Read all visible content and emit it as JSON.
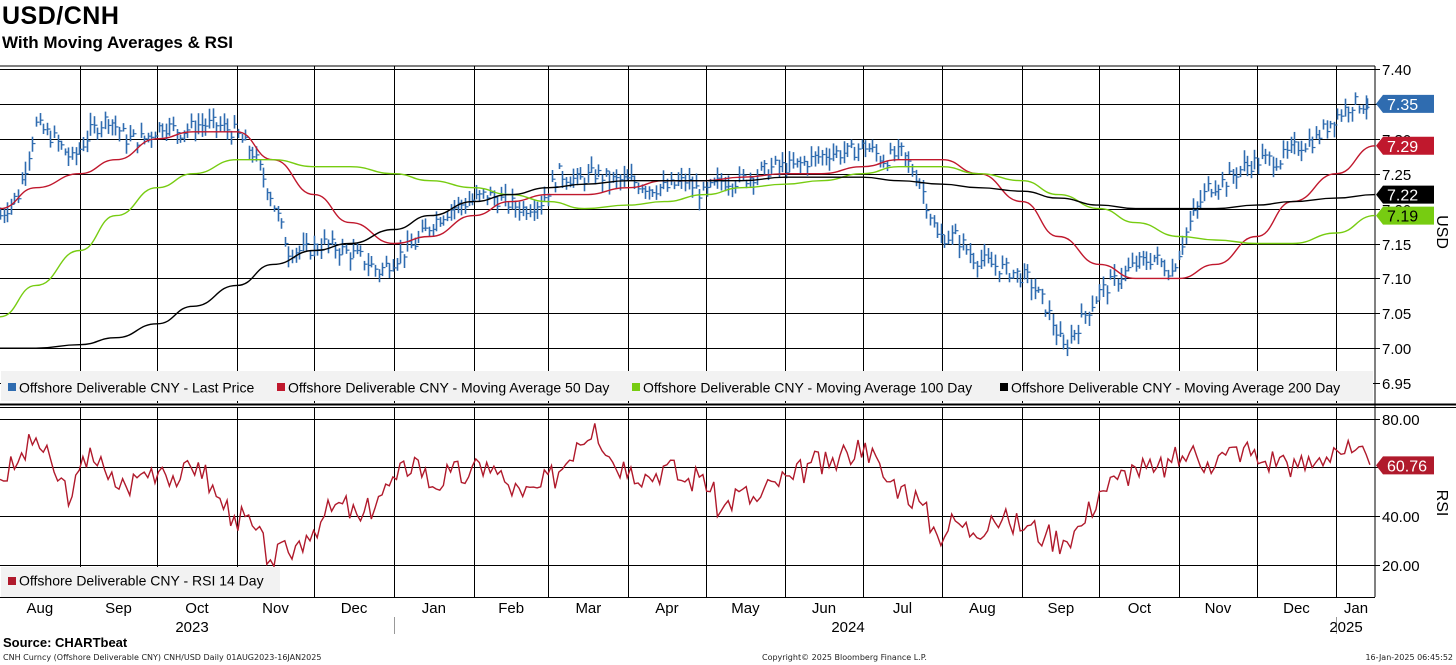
{
  "header": {
    "title": "USD/CNH",
    "subtitle": "With Moving Averages & RSI"
  },
  "footer": {
    "source": "Source: CHARTbeat",
    "security": "CNH Curncy (Offshore Deliverable CNY) CNH/USD  Daily 01AUG2023-16JAN2025",
    "copyright": "Copyright© 2025 Bloomberg Finance L.P.",
    "timestamp": "16-Jan-2025 06:45:52"
  },
  "colors": {
    "price": "#2f6cb0",
    "ma50": "#c0182d",
    "ma100": "#77cc11",
    "ma200": "#000000",
    "rsi": "#b01a2c",
    "grid": "#000000"
  },
  "chart_data": [
    {
      "type": "line",
      "title": "USD/CNH",
      "ylabel": "USD",
      "ylim": [
        6.95,
        7.4
      ],
      "yticks": [
        "6.95",
        "7.00",
        "7.05",
        "7.10",
        "7.15",
        "7.20",
        "7.25",
        "7.30",
        "7.35",
        "7.40"
      ],
      "x_range": [
        "2023-08-01",
        "2025-01-16"
      ],
      "month_labels": [
        "Aug",
        "Sep",
        "Oct",
        "Nov",
        "Dec",
        "Jan",
        "Feb",
        "Mar",
        "Apr",
        "May",
        "Jun",
        "Jul",
        "Aug",
        "Sep",
        "Oct",
        "Nov",
        "Dec",
        "Jan"
      ],
      "year_labels": [
        "2023",
        "2024",
        "2025"
      ],
      "last_value_labels": [
        {
          "series": "Offshore Deliverable CNY - Last Price",
          "value": "7.35"
        },
        {
          "series": "Offshore Deliverable CNY - Moving Average 50 Day",
          "value": "7.29"
        },
        {
          "series": "Offshore Deliverable CNY - Moving Average 200 Day",
          "value": "7.22"
        },
        {
          "series": "Offshore Deliverable CNY - Moving Average 100 Day",
          "value": "7.19"
        }
      ],
      "legend": [
        "Offshore Deliverable CNY - Last Price",
        "Offshore Deliverable CNY - Moving Average 50 Day",
        "Offshore Deliverable CNY - Moving Average 100 Day",
        "Offshore Deliverable CNY - Moving Average 200 Day"
      ],
      "legend_position": "bottom",
      "grid": true,
      "series": [
        {
          "name": "Offshore Deliverable CNY - Last Price",
          "kind": "ohlc-bars",
          "x": [
            "2023-08-01",
            "2023-08-08",
            "2023-08-15",
            "2023-08-22",
            "2023-08-29",
            "2023-09-05",
            "2023-09-12",
            "2023-09-19",
            "2023-09-26",
            "2023-10-03",
            "2023-10-10",
            "2023-10-17",
            "2023-10-24",
            "2023-10-31",
            "2023-11-07",
            "2023-11-14",
            "2023-11-21",
            "2023-11-28",
            "2023-12-05",
            "2023-12-12",
            "2023-12-19",
            "2023-12-26",
            "2024-01-02",
            "2024-01-09",
            "2024-01-16",
            "2024-01-23",
            "2024-01-30",
            "2024-02-06",
            "2024-02-13",
            "2024-02-20",
            "2024-02-27",
            "2024-03-05",
            "2024-03-12",
            "2024-03-19",
            "2024-03-26",
            "2024-04-02",
            "2024-04-09",
            "2024-04-16",
            "2024-04-23",
            "2024-04-30",
            "2024-05-07",
            "2024-05-14",
            "2024-05-21",
            "2024-05-28",
            "2024-06-04",
            "2024-06-11",
            "2024-06-18",
            "2024-06-25",
            "2024-07-02",
            "2024-07-09",
            "2024-07-16",
            "2024-07-23",
            "2024-07-30",
            "2024-08-06",
            "2024-08-13",
            "2024-08-20",
            "2024-08-27",
            "2024-09-03",
            "2024-09-10",
            "2024-09-17",
            "2024-09-24",
            "2024-10-01",
            "2024-10-08",
            "2024-10-15",
            "2024-10-22",
            "2024-10-29",
            "2024-11-05",
            "2024-11-12",
            "2024-11-19",
            "2024-11-26",
            "2024-12-03",
            "2024-12-10",
            "2024-12-17",
            "2024-12-24",
            "2024-12-31",
            "2025-01-07",
            "2025-01-14"
          ],
          "values": [
            7.19,
            7.22,
            7.32,
            7.3,
            7.27,
            7.31,
            7.33,
            7.3,
            7.3,
            7.32,
            7.31,
            7.32,
            7.32,
            7.31,
            7.28,
            7.22,
            7.14,
            7.14,
            7.15,
            7.14,
            7.13,
            7.11,
            7.13,
            7.15,
            7.18,
            7.2,
            7.21,
            7.22,
            7.21,
            7.2,
            7.21,
            7.25,
            7.24,
            7.25,
            7.24,
            7.24,
            7.23,
            7.23,
            7.24,
            7.22,
            7.24,
            7.24,
            7.25,
            7.26,
            7.26,
            7.27,
            7.28,
            7.28,
            7.29,
            7.27,
            7.28,
            7.24,
            7.16,
            7.16,
            7.13,
            7.12,
            7.11,
            7.1,
            7.06,
            7.0,
            7.04,
            7.08,
            7.1,
            7.12,
            7.13,
            7.11,
            7.18,
            7.23,
            7.24,
            7.26,
            7.27,
            7.27,
            7.29,
            7.3,
            7.33,
            7.35,
            7.35
          ]
        },
        {
          "name": "Offshore Deliverable CNY - Moving Average 50 Day",
          "x": [
            "2023-08-01",
            "2023-08-15",
            "2023-09-01",
            "2023-09-15",
            "2023-10-01",
            "2023-10-15",
            "2023-11-01",
            "2023-11-15",
            "2023-12-01",
            "2023-12-15",
            "2024-01-01",
            "2024-01-15",
            "2024-02-01",
            "2024-02-15",
            "2024-03-01",
            "2024-03-15",
            "2024-04-01",
            "2024-04-15",
            "2024-05-01",
            "2024-05-15",
            "2024-06-01",
            "2024-06-15",
            "2024-07-01",
            "2024-07-15",
            "2024-08-01",
            "2024-08-15",
            "2024-09-01",
            "2024-09-15",
            "2024-10-01",
            "2024-10-15",
            "2024-11-01",
            "2024-11-15",
            "2024-12-01",
            "2024-12-15",
            "2025-01-01",
            "2025-01-16"
          ],
          "values": [
            7.2,
            7.23,
            7.25,
            7.27,
            7.3,
            7.31,
            7.31,
            7.27,
            7.22,
            7.18,
            7.15,
            7.16,
            7.19,
            7.21,
            7.22,
            7.22,
            7.23,
            7.24,
            7.24,
            7.245,
            7.25,
            7.25,
            7.26,
            7.27,
            7.27,
            7.25,
            7.21,
            7.16,
            7.12,
            7.1,
            7.1,
            7.12,
            7.16,
            7.21,
            7.25,
            7.29
          ]
        },
        {
          "name": "Offshore Deliverable CNY - Moving Average 100 Day",
          "x": [
            "2023-08-01",
            "2023-08-15",
            "2023-09-01",
            "2023-09-15",
            "2023-10-01",
            "2023-10-15",
            "2023-11-01",
            "2023-11-15",
            "2023-12-01",
            "2023-12-15",
            "2024-01-01",
            "2024-01-15",
            "2024-02-01",
            "2024-02-15",
            "2024-03-01",
            "2024-03-15",
            "2024-04-01",
            "2024-04-15",
            "2024-05-01",
            "2024-05-15",
            "2024-06-01",
            "2024-06-15",
            "2024-07-01",
            "2024-07-15",
            "2024-08-01",
            "2024-08-15",
            "2024-09-01",
            "2024-09-15",
            "2024-10-01",
            "2024-10-15",
            "2024-11-01",
            "2024-11-15",
            "2024-12-01",
            "2024-12-15",
            "2025-01-01",
            "2025-01-16"
          ],
          "values": [
            7.045,
            7.09,
            7.14,
            7.19,
            7.23,
            7.25,
            7.27,
            7.27,
            7.26,
            7.26,
            7.25,
            7.24,
            7.23,
            7.22,
            7.21,
            7.2,
            7.205,
            7.21,
            7.22,
            7.23,
            7.235,
            7.24,
            7.25,
            7.26,
            7.26,
            7.25,
            7.24,
            7.22,
            7.2,
            7.18,
            7.16,
            7.155,
            7.15,
            7.15,
            7.165,
            7.19
          ]
        },
        {
          "name": "Offshore Deliverable CNY - Moving Average 200 Day",
          "x": [
            "2023-08-01",
            "2023-08-15",
            "2023-09-01",
            "2023-09-15",
            "2023-10-01",
            "2023-10-15",
            "2023-11-01",
            "2023-11-15",
            "2023-12-01",
            "2023-12-15",
            "2024-01-01",
            "2024-01-15",
            "2024-02-01",
            "2024-02-15",
            "2024-03-01",
            "2024-03-15",
            "2024-04-01",
            "2024-04-15",
            "2024-05-01",
            "2024-05-15",
            "2024-06-01",
            "2024-06-15",
            "2024-07-01",
            "2024-07-15",
            "2024-08-01",
            "2024-08-15",
            "2024-09-01",
            "2024-09-15",
            "2024-10-01",
            "2024-10-15",
            "2024-11-01",
            "2024-11-15",
            "2024-12-01",
            "2024-12-15",
            "2025-01-01",
            "2025-01-16"
          ],
          "values": [
            7.0,
            7.0,
            7.005,
            7.015,
            7.035,
            7.06,
            7.09,
            7.12,
            7.14,
            7.15,
            7.17,
            7.19,
            7.21,
            7.22,
            7.23,
            7.235,
            7.24,
            7.24,
            7.24,
            7.24,
            7.245,
            7.245,
            7.245,
            7.24,
            7.235,
            7.23,
            7.225,
            7.215,
            7.205,
            7.2,
            7.2,
            7.2,
            7.205,
            7.21,
            7.215,
            7.22
          ]
        }
      ]
    },
    {
      "type": "line",
      "title": "RSI",
      "ylabel": "RSI",
      "ylim": [
        10,
        80
      ],
      "yticks": [
        "20.00",
        "40.00",
        "60.00",
        "80.00"
      ],
      "last_value_labels": [
        {
          "series": "Offshore Deliverable CNY - RSI 14 Day",
          "value": "60.76"
        }
      ],
      "legend": [
        "Offshore Deliverable CNY - RSI 14 Day"
      ],
      "legend_position": "bottom-left",
      "grid": true,
      "series": [
        {
          "name": "Offshore Deliverable CNY - RSI 14 Day",
          "x": [
            "2023-08-01",
            "2023-08-08",
            "2023-08-15",
            "2023-08-22",
            "2023-08-29",
            "2023-09-05",
            "2023-09-12",
            "2023-09-19",
            "2023-09-26",
            "2023-10-03",
            "2023-10-10",
            "2023-10-17",
            "2023-10-24",
            "2023-10-31",
            "2023-11-07",
            "2023-11-14",
            "2023-11-21",
            "2023-11-28",
            "2023-12-05",
            "2023-12-12",
            "2023-12-19",
            "2023-12-26",
            "2024-01-02",
            "2024-01-09",
            "2024-01-16",
            "2024-01-23",
            "2024-01-30",
            "2024-02-06",
            "2024-02-13",
            "2024-02-20",
            "2024-02-27",
            "2024-03-05",
            "2024-03-12",
            "2024-03-19",
            "2024-03-26",
            "2024-04-02",
            "2024-04-09",
            "2024-04-16",
            "2024-04-23",
            "2024-04-30",
            "2024-05-07",
            "2024-05-14",
            "2024-05-21",
            "2024-05-28",
            "2024-06-04",
            "2024-06-11",
            "2024-06-18",
            "2024-06-25",
            "2024-07-02",
            "2024-07-09",
            "2024-07-16",
            "2024-07-23",
            "2024-07-30",
            "2024-08-06",
            "2024-08-13",
            "2024-08-20",
            "2024-08-27",
            "2024-09-03",
            "2024-09-10",
            "2024-09-17",
            "2024-09-24",
            "2024-10-01",
            "2024-10-08",
            "2024-10-15",
            "2024-10-22",
            "2024-10-29",
            "2024-11-05",
            "2024-11-12",
            "2024-11-19",
            "2024-11-26",
            "2024-12-03",
            "2024-12-10",
            "2024-12-17",
            "2024-12-24",
            "2024-12-31",
            "2025-01-07",
            "2025-01-14"
          ],
          "values": [
            55,
            62,
            72,
            58,
            48,
            68,
            55,
            52,
            58,
            60,
            55,
            62,
            48,
            40,
            36,
            22,
            25,
            32,
            40,
            45,
            38,
            48,
            55,
            64,
            52,
            58,
            56,
            62,
            54,
            48,
            52,
            58,
            70,
            78,
            62,
            60,
            56,
            61,
            54,
            57,
            42,
            50,
            46,
            54,
            55,
            62,
            60,
            66,
            70,
            56,
            52,
            46,
            32,
            38,
            33,
            40,
            37,
            36,
            32,
            30,
            36,
            50,
            55,
            60,
            58,
            62,
            66,
            62,
            65,
            68,
            62,
            64,
            60,
            62,
            68,
            66,
            61
          ]
        }
      ]
    }
  ]
}
